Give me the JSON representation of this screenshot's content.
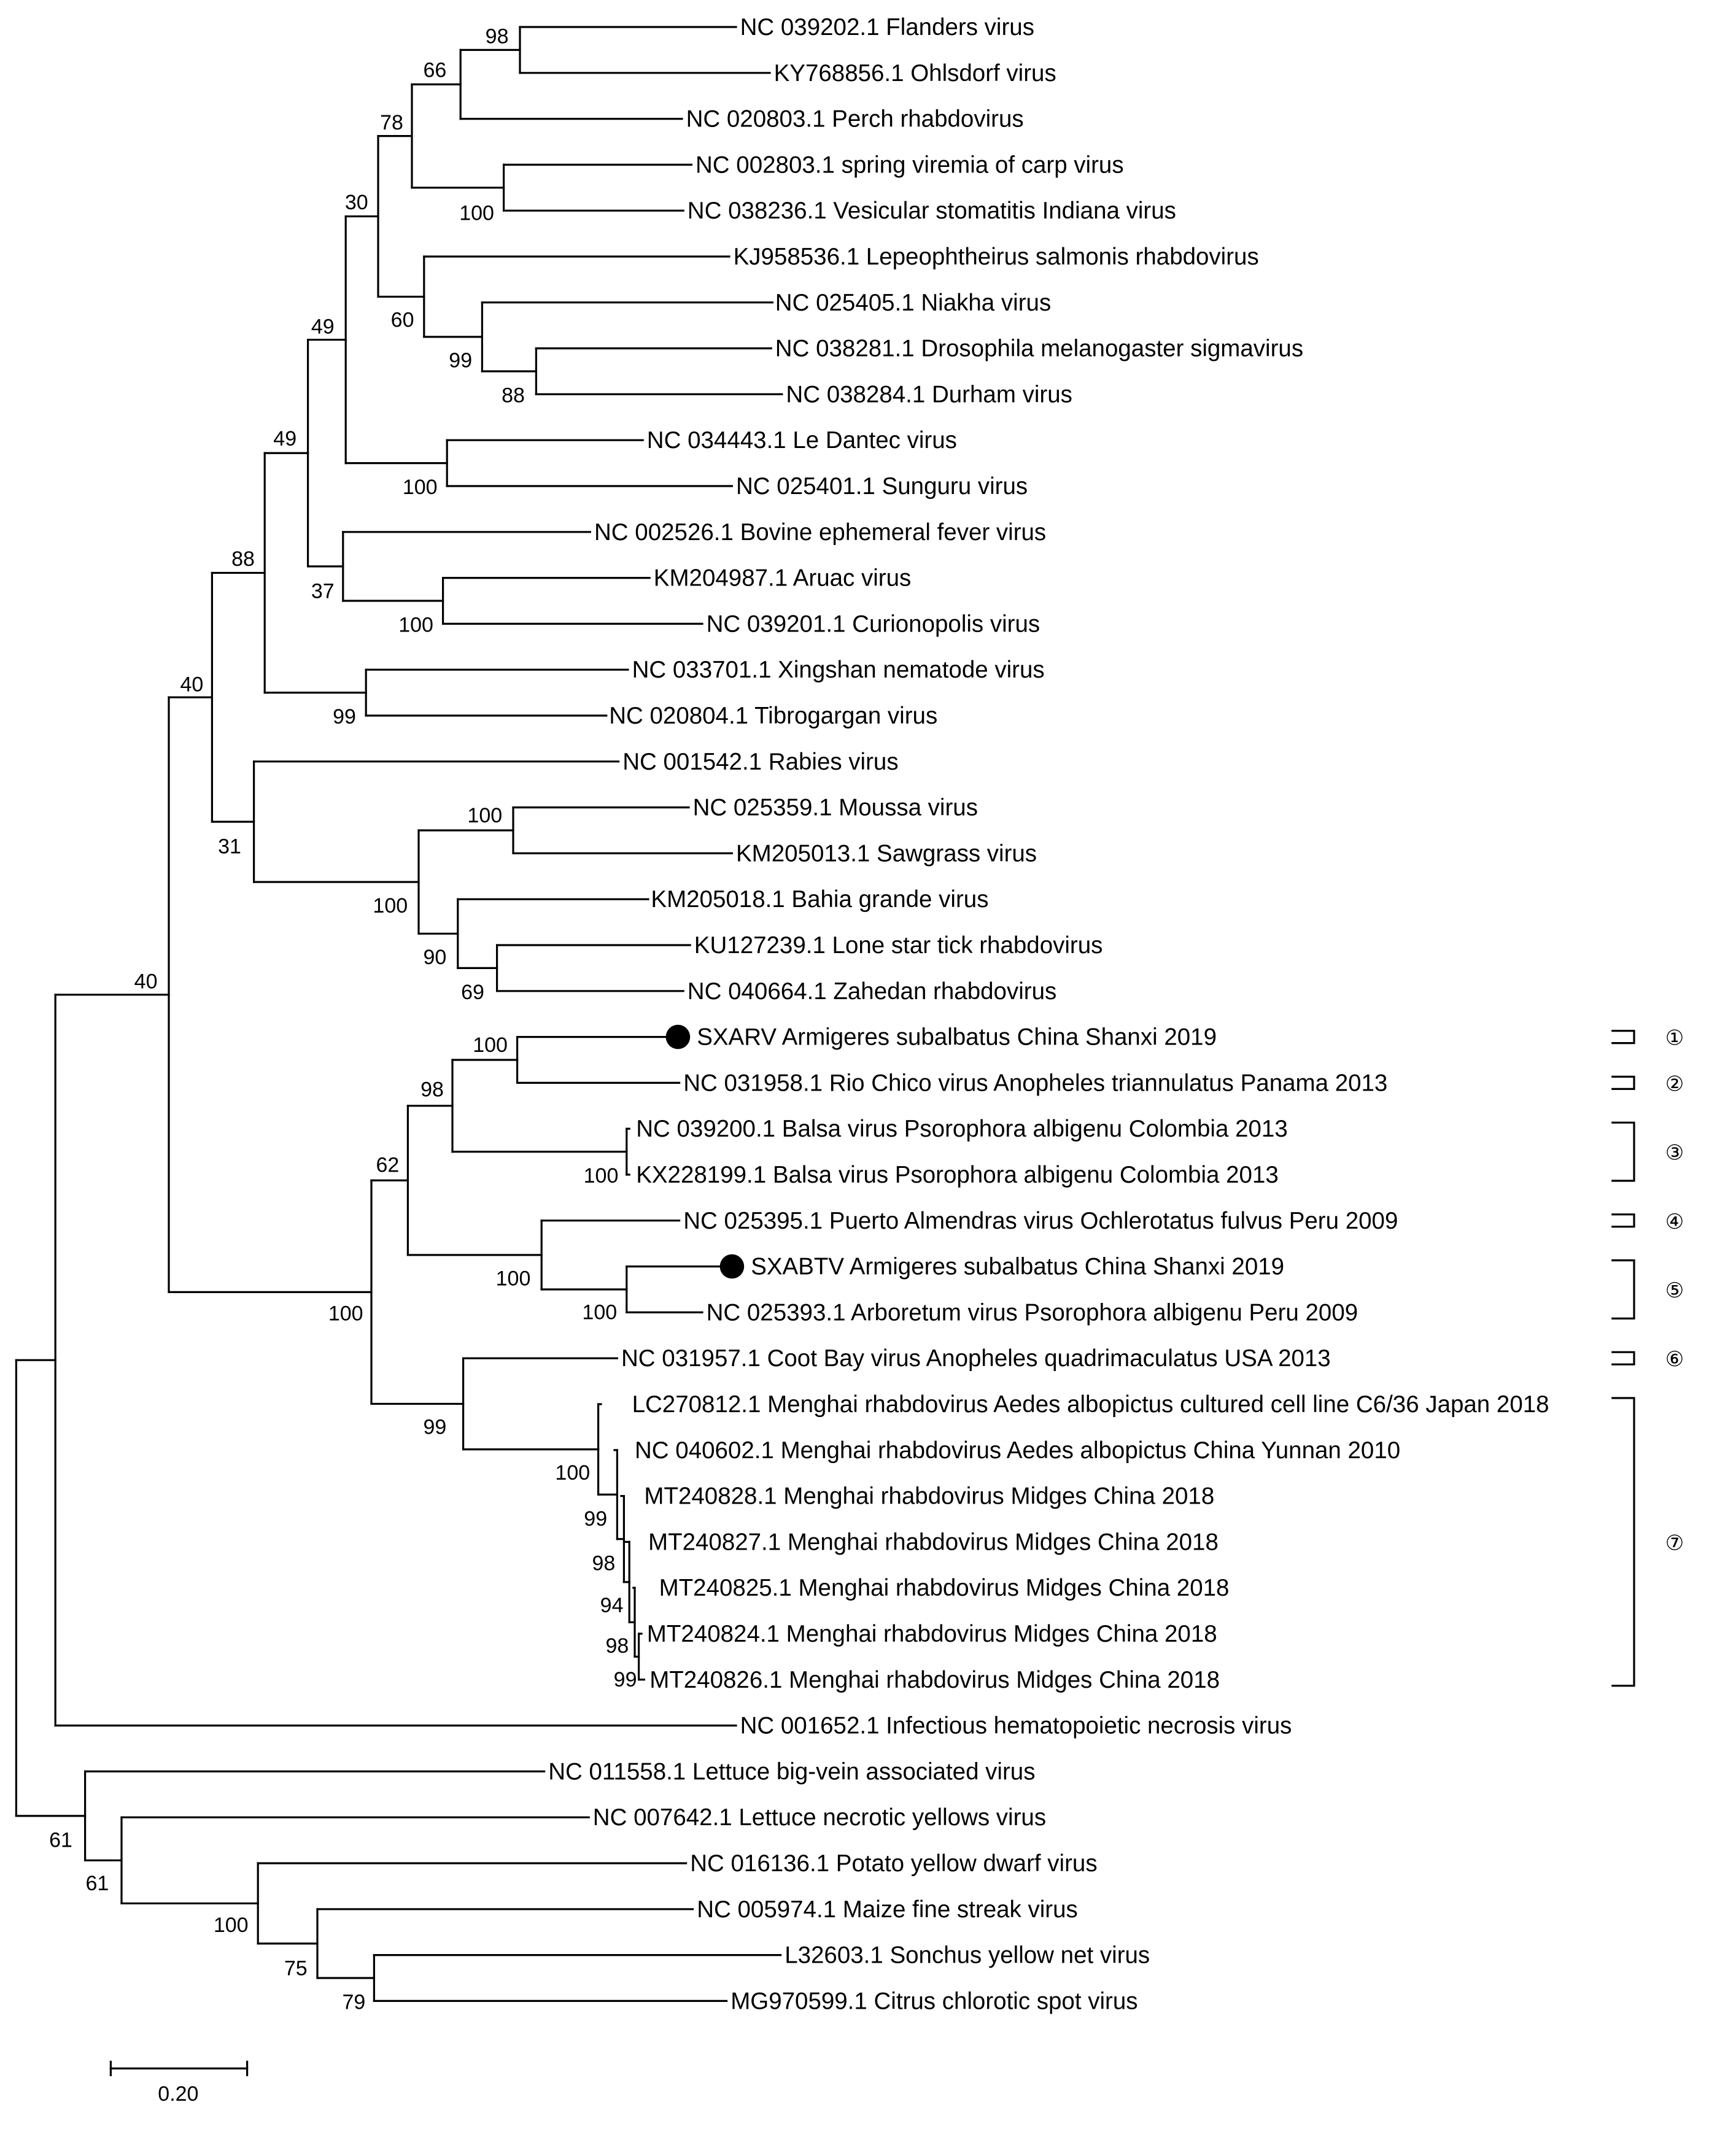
{
  "tree": {
    "taxa": [
      {
        "id": "t1",
        "label": "NC 039202.1 Flanders virus"
      },
      {
        "id": "t2",
        "label": "KY768856.1 Ohlsdorf virus"
      },
      {
        "id": "t3",
        "label": "NC 020803.1 Perch rhabdovirus"
      },
      {
        "id": "t4",
        "label": "NC 002803.1 spring viremia of carp virus"
      },
      {
        "id": "t5",
        "label": "NC 038236.1 Vesicular stomatitis Indiana virus"
      },
      {
        "id": "t6",
        "label": "KJ958536.1 Lepeophtheirus salmonis rhabdovirus"
      },
      {
        "id": "t7",
        "label": "NC 025405.1 Niakha virus"
      },
      {
        "id": "t8",
        "label": "NC 038281.1 Drosophila melanogaster sigmavirus"
      },
      {
        "id": "t9",
        "label": "NC 038284.1 Durham virus"
      },
      {
        "id": "t10",
        "label": "NC 034443.1 Le Dantec virus"
      },
      {
        "id": "t11",
        "label": "NC 025401.1 Sunguru virus"
      },
      {
        "id": "t12",
        "label": "NC 002526.1 Bovine ephemeral fever virus"
      },
      {
        "id": "t13",
        "label": "KM204987.1 Aruac virus"
      },
      {
        "id": "t14",
        "label": "NC 039201.1 Curionopolis virus"
      },
      {
        "id": "t15",
        "label": "NC 033701.1 Xingshan nematode virus"
      },
      {
        "id": "t16",
        "label": "NC 020804.1 Tibrogargan virus"
      },
      {
        "id": "t17",
        "label": "NC 001542.1 Rabies virus"
      },
      {
        "id": "t18",
        "label": "NC 025359.1 Moussa virus"
      },
      {
        "id": "t19",
        "label": "KM205013.1 Sawgrass virus"
      },
      {
        "id": "t20",
        "label": "KM205018.1 Bahia grande virus"
      },
      {
        "id": "t21",
        "label": "KU127239.1 Lone star tick rhabdovirus"
      },
      {
        "id": "t22",
        "label": "NC 040664.1 Zahedan rhabdovirus"
      },
      {
        "id": "t23",
        "label": "SXARV Armigeres subalbatus China Shanxi 2019",
        "highlight": true
      },
      {
        "id": "t24",
        "label": "NC 031958.1 Rio Chico virus Anopheles triannulatus Panama 2013"
      },
      {
        "id": "t25",
        "label": "NC 039200.1 Balsa virus Psorophora albigenu Colombia 2013"
      },
      {
        "id": "t26",
        "label": "KX228199.1 Balsa virus Psorophora albigenu Colombia 2013"
      },
      {
        "id": "t27",
        "label": "NC 025395.1 Puerto Almendras virus Ochlerotatus fulvus Peru 2009"
      },
      {
        "id": "t28",
        "label": "SXABTV Armigeres subalbatus China Shanxi 2019",
        "highlight": true
      },
      {
        "id": "t29",
        "label": "NC 025393.1 Arboretum virus Psorophora albigenu Peru 2009"
      },
      {
        "id": "t30",
        "label": "NC 031957.1 Coot Bay virus Anopheles quadrimaculatus USA 2013"
      },
      {
        "id": "t31",
        "label": "LC270812.1 Menghai rhabdovirus Aedes albopictus cultured cell line C6/36 Japan 2018"
      },
      {
        "id": "t32",
        "label": "NC 040602.1 Menghai rhabdovirus Aedes albopictus China Yunnan 2010"
      },
      {
        "id": "t33",
        "label": "MT240828.1 Menghai rhabdovirus Midges China 2018"
      },
      {
        "id": "t34",
        "label": "MT240827.1 Menghai rhabdovirus Midges China 2018"
      },
      {
        "id": "t35",
        "label": "MT240825.1 Menghai rhabdovirus Midges China 2018"
      },
      {
        "id": "t36",
        "label": "MT240824.1 Menghai rhabdovirus Midges China 2018"
      },
      {
        "id": "t37",
        "label": "MT240826.1 Menghai rhabdovirus Midges China 2018"
      },
      {
        "id": "t38",
        "label": "NC 001652.1 Infectious hematopoietic necrosis virus"
      },
      {
        "id": "t39",
        "label": "NC 011558.1 Lettuce big-vein associated virus"
      },
      {
        "id": "t40",
        "label": "NC 007642.1 Lettuce necrotic yellows virus"
      },
      {
        "id": "t41",
        "label": "NC 016136.1 Potato yellow dwarf virus"
      },
      {
        "id": "t42",
        "label": "NC 005974.1 Maize fine streak virus"
      },
      {
        "id": "t43",
        "label": "L32603.1 Sonchus yellow net virus"
      },
      {
        "id": "t44",
        "label": "MG970599.1 Citrus chlorotic spot virus"
      }
    ],
    "bootstrap": [
      "98",
      "66",
      "78",
      "100",
      "30",
      "99",
      "88",
      "60",
      "100",
      "49",
      "100",
      "37",
      "49",
      "99",
      "88",
      "100",
      "90",
      "69",
      "100",
      "31",
      "40",
      "100",
      "98",
      "100",
      "100",
      "62",
      "99",
      "98",
      "94",
      "99",
      "100",
      "100",
      "100",
      "98",
      "99",
      "79",
      "75",
      "100",
      "61"
    ],
    "groups": [
      "①",
      "②",
      "③",
      "④",
      "⑤",
      "⑥",
      "⑦"
    ],
    "scale_label": "0.20"
  }
}
